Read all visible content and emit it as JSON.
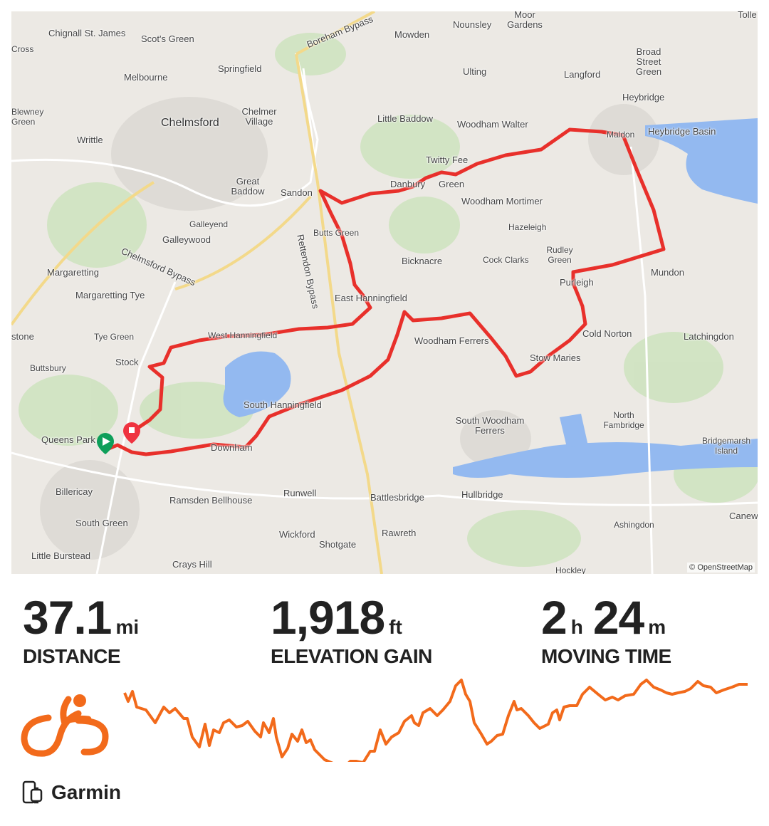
{
  "map": {
    "attribution": "© OpenStreetMap",
    "route_color": "#e8302b",
    "start_marker_color": "#0e9f5a",
    "end_marker_color": "#ef3340",
    "labels": [
      "Chignall St. James",
      "Scot's Green",
      "Springfield",
      "Boreham Bypass",
      "Mowden",
      "Nounsley",
      "Moor Gardens",
      "Tolle",
      "Melbourne",
      "Chelmer Village",
      "Chelmsford",
      "Writtle",
      "Little Baddow",
      "Woodham Walter",
      "Ulting",
      "Langford",
      "Broad Street Green",
      "Heybridge",
      "Heybridge Basin",
      "Twitty Fee",
      "Danbury",
      "Green",
      "Great Baddow",
      "Sandon",
      "Woodham Mortimer",
      "Galleyend",
      "Galleywood",
      "Butts Green",
      "Hazeleigh",
      "Rudley Green",
      "Chelmsford Bypass",
      "Margaretting",
      "Margaretting Tye",
      "Bicknacre",
      "Cock Clarks",
      "Purleigh",
      "Mundon",
      "Rettendon Bypass",
      "East Hanningfield",
      "Tye Green",
      "West Hanningfield",
      "Woodham Ferrers",
      "Cold Norton",
      "Latchingdon",
      "Stow Maries",
      "Buttsbury",
      "Stock",
      "South Hanningfield",
      "Queens Park",
      "Downham",
      "South Woodham Ferrers",
      "North Fambridge",
      "Bridgemarsh Island",
      "Billericay",
      "Ramsden Bellhouse",
      "Runwell",
      "Battlesbridge",
      "Hullbridge",
      "South Green",
      "Wickford",
      "Shotgate",
      "Rawreth",
      "Ashingdon",
      "Little Burstead",
      "Crays Hill",
      "Hockley",
      "Canewd",
      "Cross",
      "Blewney Green",
      "stone",
      "Maldon"
    ]
  },
  "stats": [
    {
      "value": "37.1",
      "unit": "mi",
      "label": "DISTANCE"
    },
    {
      "value": "1,918",
      "unit": "ft",
      "label": "ELEVATION GAIN"
    },
    {
      "value_h": "2",
      "unit_h": "h",
      "value_m": "24",
      "unit_m": "m",
      "label": "MOVING TIME"
    }
  ],
  "activity": {
    "type_icon": "cycling-icon",
    "accent": "#f26a1b"
  },
  "device": {
    "icon": "phone-watch-icon",
    "name": "Garmin"
  }
}
